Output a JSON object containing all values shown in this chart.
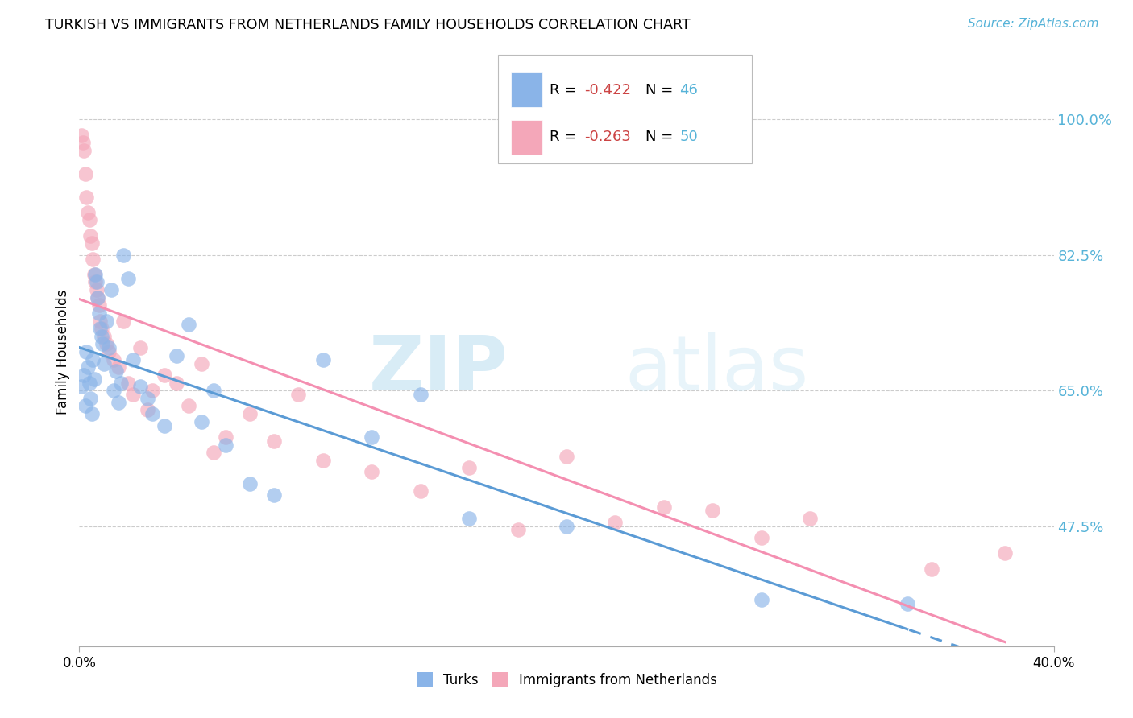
{
  "title": "TURKISH VS IMMIGRANTS FROM NETHERLANDS FAMILY HOUSEHOLDS CORRELATION CHART",
  "source": "Source: ZipAtlas.com",
  "ylabel": "Family Households",
  "watermark": "ZIPatlas",
  "legend_turks_R": "-0.422",
  "legend_turks_N": "46",
  "legend_nl_R": "-0.263",
  "legend_nl_N": "50",
  "y_ticks": [
    47.5,
    65.0,
    82.5,
    100.0
  ],
  "x_min": 0.0,
  "x_max": 40.0,
  "y_min": 32.0,
  "y_max": 108.0,
  "color_turks": "#8ab4e8",
  "color_nl": "#f4a7b9",
  "color_line_turks": "#5b9bd5",
  "color_line_nl": "#f48fb1",
  "turks_x": [
    0.1,
    0.2,
    0.25,
    0.3,
    0.35,
    0.4,
    0.45,
    0.5,
    0.55,
    0.6,
    0.65,
    0.7,
    0.75,
    0.8,
    0.85,
    0.9,
    0.95,
    1.0,
    1.1,
    1.2,
    1.3,
    1.4,
    1.5,
    1.6,
    1.7,
    1.8,
    2.0,
    2.2,
    2.5,
    2.8,
    3.0,
    3.5,
    4.0,
    4.5,
    5.0,
    5.5,
    6.0,
    7.0,
    8.0,
    10.0,
    12.0,
    14.0,
    16.0,
    20.0,
    28.0,
    34.0
  ],
  "turks_y": [
    65.5,
    67.0,
    63.0,
    70.0,
    68.0,
    66.0,
    64.0,
    62.0,
    69.0,
    66.5,
    80.0,
    79.0,
    77.0,
    75.0,
    73.0,
    72.0,
    71.0,
    68.5,
    74.0,
    70.5,
    78.0,
    65.0,
    67.5,
    63.5,
    66.0,
    82.5,
    79.5,
    69.0,
    65.5,
    64.0,
    62.0,
    60.5,
    69.5,
    73.5,
    61.0,
    65.0,
    58.0,
    53.0,
    51.5,
    69.0,
    59.0,
    64.5,
    48.5,
    47.5,
    38.0,
    37.5
  ],
  "nl_x": [
    0.1,
    0.15,
    0.2,
    0.25,
    0.3,
    0.35,
    0.4,
    0.45,
    0.5,
    0.55,
    0.6,
    0.65,
    0.7,
    0.75,
    0.8,
    0.85,
    0.9,
    1.0,
    1.1,
    1.2,
    1.4,
    1.6,
    1.8,
    2.0,
    2.2,
    2.5,
    2.8,
    3.0,
    3.5,
    4.0,
    4.5,
    5.0,
    5.5,
    6.0,
    7.0,
    8.0,
    9.0,
    10.0,
    12.0,
    14.0,
    16.0,
    18.0,
    20.0,
    22.0,
    24.0,
    26.0,
    28.0,
    30.0,
    35.0,
    38.0
  ],
  "nl_y": [
    98.0,
    97.0,
    96.0,
    93.0,
    90.0,
    88.0,
    87.0,
    85.0,
    84.0,
    82.0,
    80.0,
    79.0,
    78.0,
    77.0,
    76.0,
    74.0,
    73.0,
    72.0,
    71.0,
    70.0,
    69.0,
    68.0,
    74.0,
    66.0,
    64.5,
    70.5,
    62.5,
    65.0,
    67.0,
    66.0,
    63.0,
    68.5,
    57.0,
    59.0,
    62.0,
    58.5,
    64.5,
    56.0,
    54.5,
    52.0,
    55.0,
    47.0,
    56.5,
    48.0,
    50.0,
    49.5,
    46.0,
    48.5,
    42.0,
    44.0
  ]
}
